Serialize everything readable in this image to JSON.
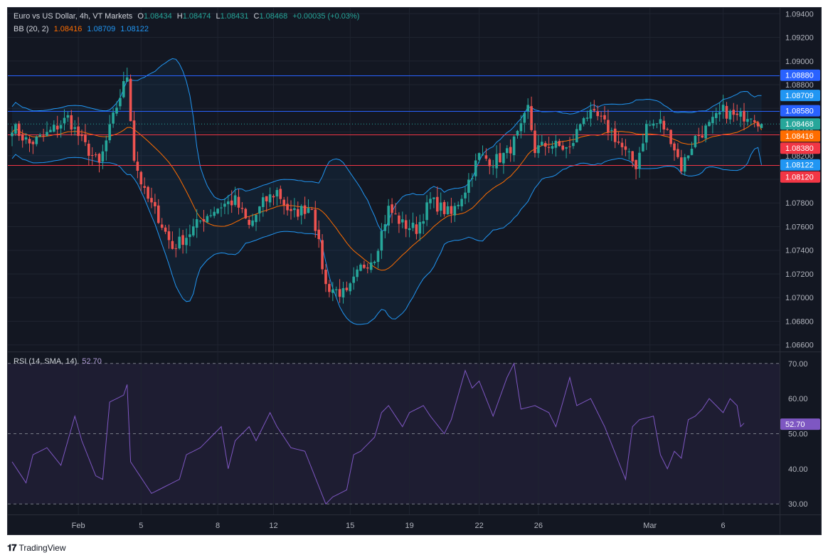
{
  "header": {
    "symbol": "Euro vs US Dollar, 4h, VT Markets",
    "o_label": "O",
    "o": "1.08434",
    "h_label": "H",
    "h": "1.08474",
    "l_label": "L",
    "l": "1.08431",
    "c_label": "C",
    "c": "1.08468",
    "change": "+0.00035 (+0.03%)"
  },
  "bb_legend": {
    "label": "BB (20, 2)",
    "basis": "1.08416",
    "upper": "1.08709",
    "lower": "1.08122"
  },
  "rsi_legend": {
    "label": "RSI (14, SMA, 14)",
    "value": "52.70"
  },
  "footer": {
    "brand": "TradingView"
  },
  "colors": {
    "bg": "#131722",
    "up": "#26a69a",
    "down": "#ef5350",
    "bb_band": "#2196f3",
    "bb_basis": "#ff6d00",
    "rsi": "#7e57c2",
    "grid": "#1f2430",
    "text": "#b2b5be"
  },
  "chart_data": [
    {
      "type": "candlestick",
      "pane": "price",
      "y_ticks": [
        "1.09400",
        "1.09200",
        "1.09000",
        "1.08800",
        "1.08600",
        "1.08400",
        "1.08200",
        "1.08000",
        "1.07800",
        "1.07600",
        "1.07400",
        "1.07200",
        "1.07000",
        "1.06800",
        "1.06600"
      ],
      "ylim": [
        1.0655,
        1.0945
      ],
      "x_ticks": [
        "Feb",
        "5",
        "8",
        "12",
        "15",
        "19",
        "22",
        "26",
        "Mar",
        "6"
      ],
      "price_labels": [
        {
          "value": "1.08880",
          "kind": "line",
          "color": "#2962ff"
        },
        {
          "value": "1.08709",
          "kind": "bb-upper",
          "color": "#2196f3"
        },
        {
          "value": "1.08580",
          "kind": "line",
          "color": "#2962ff"
        },
        {
          "value": "1.08468",
          "kind": "last",
          "color": "#26a69a"
        },
        {
          "value": "1.08416",
          "kind": "bb-basis",
          "color": "#ff6d00"
        },
        {
          "value": "1.08380",
          "kind": "line",
          "color": "#f23645"
        },
        {
          "value": "1.08122",
          "kind": "bb-lower",
          "color": "#2196f3"
        },
        {
          "value": "1.08120",
          "kind": "line",
          "color": "#f23645"
        }
      ],
      "horizontal_lines": [
        {
          "value": 1.0888,
          "color": "#2962ff"
        },
        {
          "value": 1.0858,
          "color": "#2962ff"
        },
        {
          "value": 1.0838,
          "color": "#f23645"
        },
        {
          "value": 1.0812,
          "color": "#f23645"
        }
      ],
      "close_anchors": [
        [
          0,
          1.0845
        ],
        [
          5,
          1.083
        ],
        [
          10,
          1.0838
        ],
        [
          16,
          1.0852
        ],
        [
          20,
          1.0832
        ],
        [
          25,
          1.0812
        ],
        [
          30,
          1.0862
        ],
        [
          33,
          1.0888
        ],
        [
          35,
          1.0818
        ],
        [
          38,
          1.0788
        ],
        [
          42,
          1.0768
        ],
        [
          46,
          1.0742
        ],
        [
          50,
          1.0752
        ],
        [
          55,
          1.0768
        ],
        [
          60,
          1.0778
        ],
        [
          64,
          1.0782
        ],
        [
          68,
          1.076
        ],
        [
          72,
          1.078
        ],
        [
          76,
          1.079
        ],
        [
          80,
          1.077
        ],
        [
          86,
          1.0778
        ],
        [
          90,
          1.071
        ],
        [
          96,
          1.0702
        ],
        [
          100,
          1.0725
        ],
        [
          104,
          1.0735
        ],
        [
          108,
          1.0775
        ],
        [
          112,
          1.0762
        ],
        [
          116,
          1.0758
        ],
        [
          120,
          1.0782
        ],
        [
          126,
          1.077
        ],
        [
          130,
          1.0792
        ],
        [
          134,
          1.082
        ],
        [
          138,
          1.0815
        ],
        [
          142,
          1.0822
        ],
        [
          146,
          1.0842
        ],
        [
          148,
          1.086
        ],
        [
          150,
          1.0825
        ],
        [
          154,
          1.083
        ],
        [
          160,
          1.0825
        ],
        [
          164,
          1.0855
        ],
        [
          168,
          1.0852
        ],
        [
          172,
          1.084
        ],
        [
          176,
          1.0822
        ],
        [
          179,
          1.0812
        ],
        [
          182,
          1.0845
        ],
        [
          186,
          1.0848
        ],
        [
          189,
          1.0835
        ],
        [
          192,
          1.081
        ],
        [
          196,
          1.0835
        ],
        [
          200,
          1.0845
        ],
        [
          204,
          1.0858
        ],
        [
          208,
          1.0852
        ],
        [
          212,
          1.0856
        ],
        [
          215,
          1.0846
        ]
      ],
      "ohlc_last": {
        "open": 1.08434,
        "high": 1.08474,
        "low": 1.08431,
        "close": 1.08468
      },
      "bollinger": {
        "period": 20,
        "stddev": 2,
        "basis": 1.08416,
        "upper": 1.08709,
        "lower": 1.08122
      }
    },
    {
      "type": "line",
      "pane": "rsi",
      "y_ticks": [
        "70.00",
        "60.00",
        "50.00",
        "40.00",
        "30.00"
      ],
      "ylim": [
        27,
        73
      ],
      "levels": [
        70,
        50,
        30
      ],
      "current": "52.70",
      "anchors": [
        [
          0,
          42
        ],
        [
          4,
          36
        ],
        [
          6,
          44
        ],
        [
          10,
          46
        ],
        [
          14,
          41
        ],
        [
          18,
          55
        ],
        [
          20,
          48
        ],
        [
          24,
          38
        ],
        [
          26,
          37
        ],
        [
          28,
          59
        ],
        [
          32,
          61
        ],
        [
          33,
          64
        ],
        [
          34,
          42
        ],
        [
          38,
          36
        ],
        [
          40,
          33
        ],
        [
          44,
          35
        ],
        [
          48,
          37
        ],
        [
          50,
          44
        ],
        [
          54,
          46
        ],
        [
          56,
          48
        ],
        [
          60,
          52
        ],
        [
          62,
          40
        ],
        [
          64,
          48
        ],
        [
          68,
          52
        ],
        [
          70,
          48
        ],
        [
          74,
          56
        ],
        [
          76,
          52
        ],
        [
          80,
          46
        ],
        [
          84,
          45
        ],
        [
          90,
          30
        ],
        [
          92,
          32
        ],
        [
          96,
          34
        ],
        [
          98,
          44
        ],
        [
          100,
          45
        ],
        [
          104,
          49
        ],
        [
          106,
          56
        ],
        [
          108,
          58
        ],
        [
          112,
          52
        ],
        [
          114,
          56
        ],
        [
          118,
          58
        ],
        [
          120,
          55
        ],
        [
          124,
          50
        ],
        [
          126,
          54
        ],
        [
          130,
          68
        ],
        [
          132,
          63
        ],
        [
          134,
          65
        ],
        [
          138,
          55
        ],
        [
          142,
          66
        ],
        [
          144,
          70
        ],
        [
          146,
          57
        ],
        [
          150,
          58
        ],
        [
          154,
          56
        ],
        [
          156,
          52
        ],
        [
          160,
          66
        ],
        [
          162,
          58
        ],
        [
          166,
          60
        ],
        [
          170,
          52
        ],
        [
          174,
          42
        ],
        [
          176,
          37
        ],
        [
          178,
          52
        ],
        [
          180,
          54
        ],
        [
          184,
          55
        ],
        [
          186,
          44
        ],
        [
          188,
          40
        ],
        [
          190,
          45
        ],
        [
          192,
          43
        ],
        [
          194,
          54
        ],
        [
          196,
          55
        ],
        [
          198,
          57
        ],
        [
          200,
          60
        ],
        [
          202,
          58
        ],
        [
          204,
          56
        ],
        [
          206,
          60
        ],
        [
          208,
          58
        ],
        [
          209,
          52
        ],
        [
          210,
          53
        ]
      ]
    }
  ]
}
